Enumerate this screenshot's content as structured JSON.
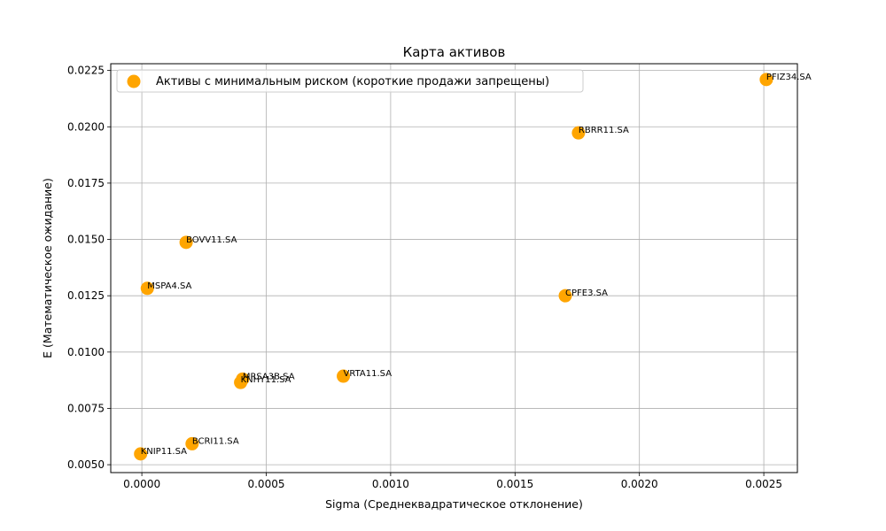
{
  "chart_data": {
    "type": "scatter",
    "title": "Карта активов",
    "xlabel": "Sigma (Среднеквадратическое отклонение)",
    "ylabel": "E (Математическое ожидание)",
    "xlim": [
      -0.000125,
      0.002635
    ],
    "ylim": [
      0.00465,
      0.0228
    ],
    "x_ticks": [
      0.0,
      0.0005,
      0.001,
      0.0015,
      0.002,
      0.0025
    ],
    "x_tick_labels": [
      "0.0000",
      "0.0005",
      "0.0010",
      "0.0015",
      "0.0020",
      "0.0025"
    ],
    "y_ticks": [
      0.005,
      0.0075,
      0.01,
      0.0125,
      0.015,
      0.0175,
      0.02,
      0.0225
    ],
    "y_tick_labels": [
      "0.0050",
      "0.0075",
      "0.0100",
      "0.0125",
      "0.0150",
      "0.0175",
      "0.0200",
      "0.0225"
    ],
    "grid": true,
    "legend_position": "top-left",
    "series": [
      {
        "name": "Активы с минимальным риском (короткие продажи запрещены)",
        "color": "#FFA500",
        "points": [
          {
            "label": "PFIZ34.SA",
            "x": 0.00251,
            "y": 0.0221
          },
          {
            "label": "RBRR11.SA",
            "x": 0.001755,
            "y": 0.01973
          },
          {
            "label": "BOVV11.SA",
            "x": 0.000178,
            "y": 0.01487
          },
          {
            "label": "MSPA4.SA",
            "x": 2.2e-05,
            "y": 0.01283
          },
          {
            "label": "CPFE3.SA",
            "x": 0.001702,
            "y": 0.0125
          },
          {
            "label": "VRTA11.SA",
            "x": 0.00081,
            "y": 0.00893
          },
          {
            "label": "MRSA3B.SA",
            "x": 0.000405,
            "y": 0.0088
          },
          {
            "label": "KNHY11.SA",
            "x": 0.000397,
            "y": 0.00865
          },
          {
            "label": "BCRI11.SA",
            "x": 0.000202,
            "y": 0.00593
          },
          {
            "label": "KNIP11.SA",
            "x": -5e-06,
            "y": 0.00548
          }
        ]
      }
    ]
  }
}
